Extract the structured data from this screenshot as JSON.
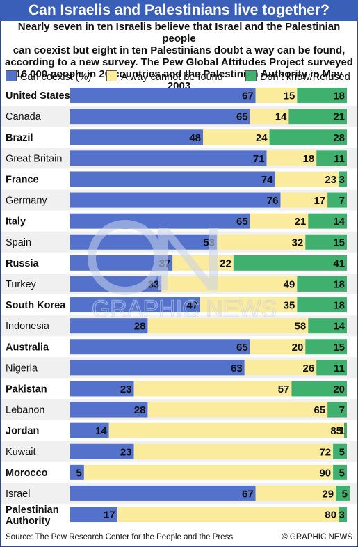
{
  "title": "Can Israelis and Palestinians live together?",
  "subtitle_lines": [
    "Nearly seven in ten Israelis believe that Israel and the Palestinian people",
    "can coexist but eight in ten Palestinians doubt a way can be found,",
    "according to a new survey. The Pew Global Attitudes Project surveyed",
    "16,000 people in 20 countries and the Palestinian Authority in May 2003"
  ],
  "colors": {
    "coexist": "#5472cc",
    "cannot": "#fbeb9d",
    "dontknow": "#3fb06d",
    "title_bg": "#3a5fb8",
    "row_alt": "#f0f0f0"
  },
  "chart_data": {
    "type": "bar",
    "stacked": true,
    "orientation": "horizontal",
    "legend_position": "top",
    "series": [
      {
        "name": "Can coexist (%)",
        "values": [
          67,
          65,
          48,
          71,
          74,
          76,
          65,
          53,
          37,
          33,
          47,
          28,
          65,
          63,
          23,
          28,
          14,
          23,
          5,
          67,
          17
        ]
      },
      {
        "name": "A way cannot be found",
        "values": [
          15,
          14,
          24,
          18,
          23,
          17,
          21,
          32,
          22,
          49,
          35,
          58,
          20,
          26,
          57,
          65,
          85,
          72,
          90,
          29,
          80
        ]
      },
      {
        "name": "Don’t know/Refused",
        "values": [
          18,
          21,
          28,
          11,
          3,
          7,
          14,
          15,
          41,
          18,
          18,
          14,
          15,
          11,
          20,
          7,
          1,
          5,
          5,
          5,
          3
        ]
      }
    ],
    "categories": [
      {
        "label": [
          "United States"
        ],
        "bold": true
      },
      {
        "label": [
          "Canada"
        ],
        "bold": false
      },
      {
        "label": [
          "Brazil"
        ],
        "bold": true
      },
      {
        "label": [
          "Great Britain"
        ],
        "bold": false
      },
      {
        "label": [
          "France"
        ],
        "bold": true
      },
      {
        "label": [
          "Germany"
        ],
        "bold": false
      },
      {
        "label": [
          "Italy"
        ],
        "bold": true
      },
      {
        "label": [
          "Spain"
        ],
        "bold": false
      },
      {
        "label": [
          "Russia"
        ],
        "bold": true
      },
      {
        "label": [
          "Turkey"
        ],
        "bold": false
      },
      {
        "label": [
          "South Korea"
        ],
        "bold": true
      },
      {
        "label": [
          "Indonesia"
        ],
        "bold": false
      },
      {
        "label": [
          "Australia"
        ],
        "bold": true
      },
      {
        "label": [
          "Nigeria"
        ],
        "bold": false
      },
      {
        "label": [
          "Pakistan"
        ],
        "bold": true
      },
      {
        "label": [
          "Lebanon"
        ],
        "bold": false
      },
      {
        "label": [
          "Jordan"
        ],
        "bold": true
      },
      {
        "label": [
          "Kuwait"
        ],
        "bold": false
      },
      {
        "label": [
          "Morocco"
        ],
        "bold": true
      },
      {
        "label": [
          "Israel"
        ],
        "bold": false
      },
      {
        "label": [
          "Palestinian",
          "Authority"
        ],
        "bold": true
      }
    ],
    "xlim": [
      0,
      100
    ],
    "grid": false
  },
  "source": "Source: The Pew Research Center for the People and the Press",
  "credit": "© GRAPHIC NEWS",
  "watermark_text": "GRAPHIC NEWS"
}
